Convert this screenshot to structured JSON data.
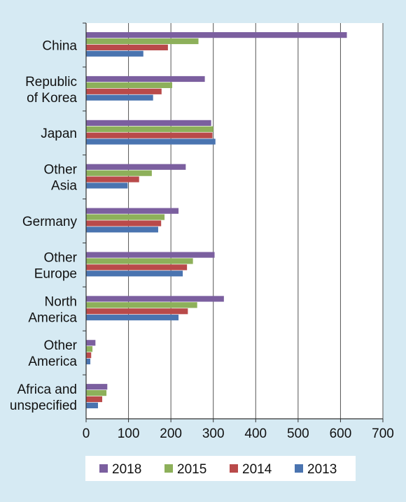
{
  "chart_data": {
    "type": "bar",
    "orientation": "horizontal",
    "categories": [
      [
        "China"
      ],
      [
        "Republic",
        "of Korea"
      ],
      [
        "Japan"
      ],
      [
        "Other",
        "Asia"
      ],
      [
        "Germany"
      ],
      [
        "Other",
        "Europe"
      ],
      [
        "North",
        "America"
      ],
      [
        "Other",
        "America"
      ],
      [
        "Africa and",
        "unspecified"
      ]
    ],
    "series": [
      {
        "name": "2018",
        "color": "#7b5f9f",
        "values": [
          615,
          280,
          295,
          235,
          218,
          303,
          325,
          22,
          50
        ]
      },
      {
        "name": "2015",
        "color": "#8db05a",
        "values": [
          265,
          203,
          300,
          155,
          185,
          252,
          262,
          15,
          48
        ]
      },
      {
        "name": "2014",
        "color": "#b94a4a",
        "values": [
          193,
          178,
          298,
          125,
          177,
          238,
          240,
          12,
          38
        ]
      },
      {
        "name": "2013",
        "color": "#4a74b0",
        "values": [
          135,
          158,
          305,
          98,
          170,
          228,
          218,
          10,
          28
        ]
      }
    ],
    "xlim": [
      0,
      700
    ],
    "xticks": [
      0,
      100,
      200,
      300,
      400,
      500,
      600,
      700
    ],
    "grid": true,
    "legend": "bottom",
    "title": "",
    "xlabel": "",
    "ylabel": ""
  }
}
